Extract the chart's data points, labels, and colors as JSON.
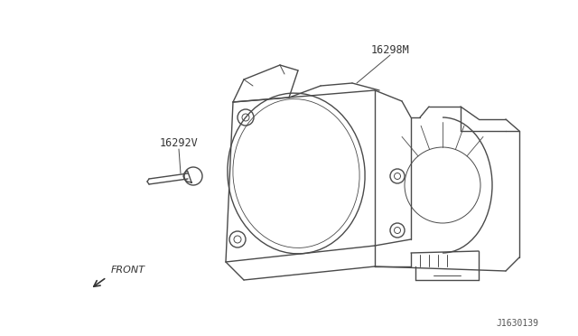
{
  "bg_color": "#ffffff",
  "line_color": "#4a4a4a",
  "label_16298M": "16298M",
  "label_16292V": "16292V",
  "label_front": "FRONT",
  "label_part_number": "J1630139",
  "lw": 1.0
}
